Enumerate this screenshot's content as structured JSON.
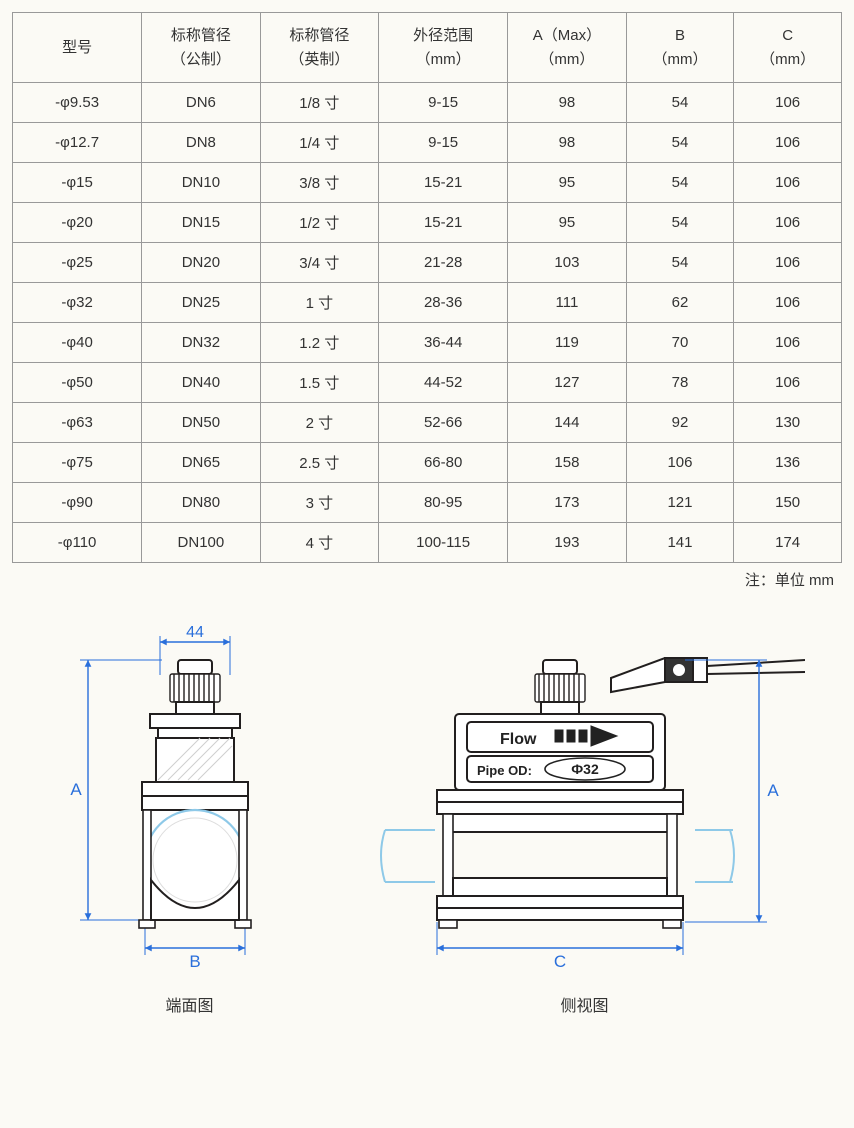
{
  "table": {
    "headers": {
      "model": {
        "line1": "型号",
        "line2": ""
      },
      "metric": {
        "line1": "标称管径",
        "line2": "（公制）"
      },
      "imperial": {
        "line1": "标称管径",
        "line2": "（英制）"
      },
      "od": {
        "line1": "外径范围",
        "line2": "（mm）"
      },
      "a": {
        "line1": "A（Max）",
        "line2": "（mm）"
      },
      "b": {
        "line1": "B",
        "line2": "（mm）"
      },
      "c": {
        "line1": "C",
        "line2": "（mm）"
      }
    },
    "rows": [
      {
        "model": "-φ9.53",
        "metric": "DN6",
        "imperial": "1/8 寸",
        "od": "9-15",
        "a": "98",
        "b": "54",
        "c": "106"
      },
      {
        "model": "-φ12.7",
        "metric": "DN8",
        "imperial": "1/4 寸",
        "od": "9-15",
        "a": "98",
        "b": "54",
        "c": "106"
      },
      {
        "model": "-φ15",
        "metric": "DN10",
        "imperial": "3/8 寸",
        "od": "15-21",
        "a": "95",
        "b": "54",
        "c": "106"
      },
      {
        "model": "-φ20",
        "metric": "DN15",
        "imperial": "1/2 寸",
        "od": "15-21",
        "a": "95",
        "b": "54",
        "c": "106"
      },
      {
        "model": "-φ25",
        "metric": "DN20",
        "imperial": "3/4 寸",
        "od": "21-28",
        "a": "103",
        "b": "54",
        "c": "106"
      },
      {
        "model": "-φ32",
        "metric": "DN25",
        "imperial": "1 寸",
        "od": "28-36",
        "a": "111",
        "b": "62",
        "c": "106"
      },
      {
        "model": "-φ40",
        "metric": "DN32",
        "imperial": "1.2 寸",
        "od": "36-44",
        "a": "119",
        "b": "70",
        "c": "106"
      },
      {
        "model": "-φ50",
        "metric": "DN40",
        "imperial": "1.5 寸",
        "od": "44-52",
        "a": "127",
        "b": "78",
        "c": "106"
      },
      {
        "model": "-φ63",
        "metric": "DN50",
        "imperial": "2 寸",
        "od": "52-66",
        "a": "144",
        "b": "92",
        "c": "130"
      },
      {
        "model": "-φ75",
        "metric": "DN65",
        "imperial": "2.5 寸",
        "od": "66-80",
        "a": "158",
        "b": "106",
        "c": "136"
      },
      {
        "model": "-φ90",
        "metric": "DN80",
        "imperial": "3 寸",
        "od": "80-95",
        "a": "173",
        "b": "121",
        "c": "150"
      },
      {
        "model": "-φ110",
        "metric": "DN100",
        "imperial": "4 寸",
        "od": "100-115",
        "a": "193",
        "b": "141",
        "c": "174"
      }
    ]
  },
  "note": "注：单位 mm",
  "diagrams": {
    "front": {
      "caption": "端面图",
      "dim44": "44",
      "dimA": "A",
      "dimB": "B",
      "colors": {
        "dim_line": "#2a6fdb",
        "dim_text": "#2a6fdb",
        "outline": "#221f1f",
        "fill_light": "#ffffff",
        "pipe_outline": "#8ec9e8",
        "hatch": "#bbbbbb"
      }
    },
    "side": {
      "caption": "侧视图",
      "dimA": "A",
      "dimC": "C",
      "flow_text": "Flow",
      "pipe_text": "Pipe OD:",
      "pipe_diam": "Ф32",
      "colors": {
        "dim_line": "#2a6fdb",
        "dim_text": "#2a6fdb",
        "outline": "#221f1f",
        "pipe_outline": "#8ec9e8",
        "fill_light": "#ffffff"
      }
    }
  }
}
